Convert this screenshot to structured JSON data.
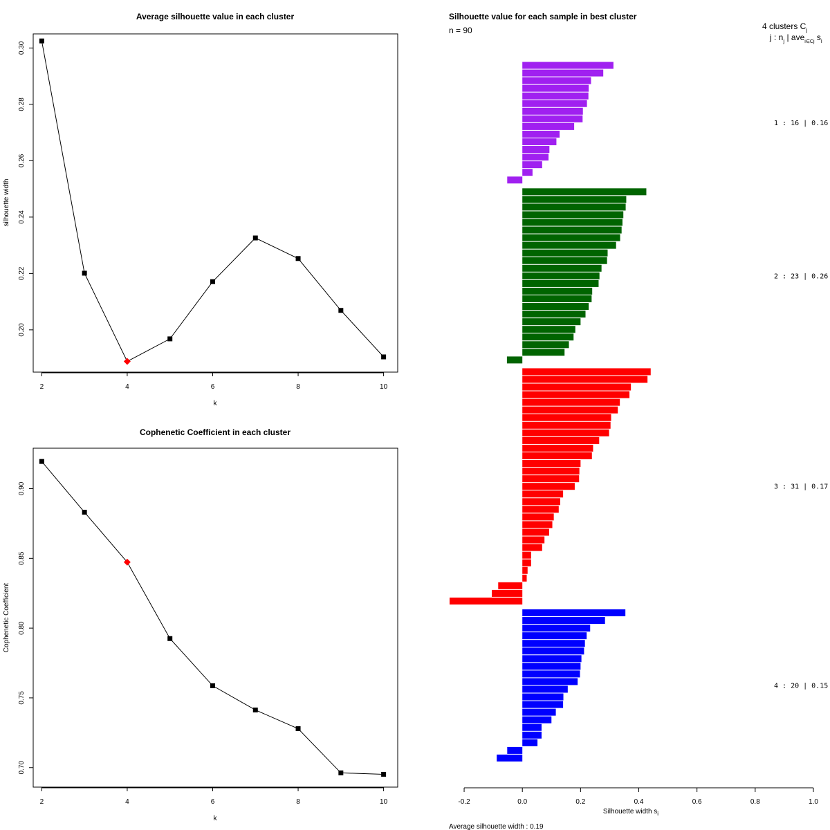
{
  "chart_data": [
    {
      "id": "avg_silhouette",
      "type": "line",
      "title": "Average silhouette value in each cluster",
      "xlabel": "k",
      "ylabel": "silhouette width",
      "x": [
        2,
        3,
        4,
        5,
        6,
        7,
        8,
        9,
        10
      ],
      "values": [
        0.3025,
        0.2201,
        0.1888,
        0.1968,
        0.2171,
        0.2326,
        0.2253,
        0.2069,
        0.1904
      ],
      "highlight_index": 2,
      "highlight_color": "#ff0000",
      "xlim": [
        1.8,
        10.33
      ],
      "ylim": [
        0.185,
        0.305
      ],
      "xticks": [
        2,
        4,
        6,
        8,
        10
      ],
      "yticks": [
        0.2,
        0.22,
        0.24,
        0.26,
        0.28,
        0.3
      ],
      "yticklabels": [
        "0.20",
        "0.22",
        "0.24",
        "0.26",
        "0.28",
        "0.30"
      ]
    },
    {
      "id": "cophenetic",
      "type": "line",
      "title": "Cophenetic Coefficient in each cluster",
      "xlabel": "k",
      "ylabel": "Cophenetic Coefficient",
      "x": [
        2,
        3,
        4,
        5,
        6,
        7,
        8,
        9,
        10
      ],
      "values": [
        0.9195,
        0.8831,
        0.8473,
        0.7925,
        0.7587,
        0.7413,
        0.7279,
        0.6962,
        0.6952
      ],
      "highlight_index": 2,
      "highlight_color": "#ff0000",
      "xlim": [
        1.8,
        10.33
      ],
      "ylim": [
        0.686,
        0.929
      ],
      "xticks": [
        2,
        4,
        6,
        8,
        10
      ],
      "yticks": [
        0.7,
        0.75,
        0.8,
        0.85,
        0.9
      ],
      "yticklabels": [
        "0.70",
        "0.75",
        "0.80",
        "0.85",
        "0.90"
      ]
    },
    {
      "id": "silhouette_samples",
      "type": "bar",
      "orientation": "horizontal",
      "title": "Silhouette value for each sample in best cluster",
      "n_label": "n = 90",
      "header_line1": "4  clusters  C",
      "header_line1_sub": "j",
      "header_line2": "j :  n",
      "header_line2_sub": "j",
      "header_line2_rest": " | ave",
      "header_line2_sub2": "i∈Cj",
      "header_line2_end": " s",
      "header_line2_sub3": "i",
      "xlabel": "Silhouette width s",
      "xlabel_sub": "i",
      "footer": "Average silhouette width :  0.19",
      "xlim": [
        -0.25,
        1.0
      ],
      "xticks": [
        -0.2,
        0.0,
        0.2,
        0.4,
        0.6,
        0.8,
        1.0
      ],
      "xticklabels": [
        "-0.2",
        "0.0",
        "0.2",
        "0.4",
        "0.6",
        "0.8",
        "1.0"
      ],
      "series": [
        {
          "name": "1 :  16  |  0.16",
          "color": "#a020f0",
          "values": [
            0.313,
            0.278,
            0.236,
            0.228,
            0.227,
            0.222,
            0.208,
            0.207,
            0.178,
            0.128,
            0.117,
            0.093,
            0.09,
            0.068,
            0.035,
            -0.052
          ]
        },
        {
          "name": "2 :  23  |  0.26",
          "color": "#006400",
          "values": [
            0.426,
            0.357,
            0.355,
            0.347,
            0.344,
            0.341,
            0.336,
            0.322,
            0.293,
            0.291,
            0.272,
            0.265,
            0.262,
            0.24,
            0.238,
            0.228,
            0.217,
            0.2,
            0.182,
            0.176,
            0.16,
            0.145,
            -0.053
          ]
        },
        {
          "name": "3 :  31  |  0.17",
          "color": "#ff0000",
          "values": [
            0.441,
            0.43,
            0.373,
            0.368,
            0.335,
            0.328,
            0.305,
            0.303,
            0.298,
            0.264,
            0.243,
            0.239,
            0.2,
            0.196,
            0.195,
            0.18,
            0.14,
            0.13,
            0.125,
            0.108,
            0.103,
            0.092,
            0.076,
            0.068,
            0.03,
            0.03,
            0.018,
            0.015,
            -0.083,
            -0.105,
            -0.25
          ]
        },
        {
          "name": "4 :  20  |  0.15",
          "color": "#0000ff",
          "values": [
            0.354,
            0.284,
            0.233,
            0.221,
            0.215,
            0.212,
            0.203,
            0.2,
            0.198,
            0.19,
            0.156,
            0.141,
            0.14,
            0.115,
            0.1,
            0.066,
            0.066,
            0.052,
            -0.052,
            -0.088
          ]
        }
      ]
    }
  ]
}
